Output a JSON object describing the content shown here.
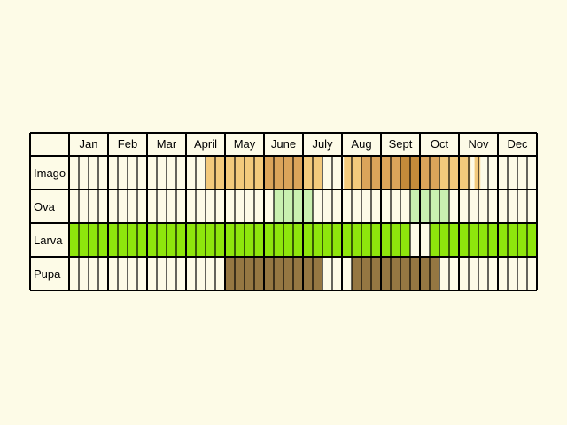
{
  "colors": {
    "background": "#fdfbe7",
    "cell_empty": "#fdfbe7",
    "grid_line": "#000000",
    "imago_light": "#f3ca7c",
    "imago_medium": "#dba45a",
    "imago_dark": "#c48b3a",
    "ova": "#c9f0b0",
    "larva": "#8ee60c",
    "pupa": "#957742"
  },
  "chart_data": {
    "type": "table",
    "months": [
      "Jan",
      "Feb",
      "Mar",
      "April",
      "May",
      "June",
      "July",
      "Aug",
      "Sept",
      "Oct",
      "Nov",
      "Dec"
    ],
    "subdivisions_per_month": 4,
    "stages": [
      "Imago",
      "Ova",
      "Larva",
      "Pupa"
    ],
    "activity": {
      "Imago": [
        {
          "start": 3.5,
          "end": 4.25,
          "level": "light"
        },
        {
          "start": 4.25,
          "end": 5.3,
          "level": "light"
        },
        {
          "start": 5.0,
          "end": 5.5,
          "level": "medium"
        },
        {
          "start": 5.5,
          "end": 6.0,
          "level": "medium"
        },
        {
          "start": 6.0,
          "end": 6.5,
          "level": "light"
        },
        {
          "start": 7.05,
          "end": 7.5,
          "level": "light"
        },
        {
          "start": 7.5,
          "end": 8.0,
          "level": "medium"
        },
        {
          "start": 8.0,
          "end": 8.5,
          "level": "medium"
        },
        {
          "start": 8.5,
          "end": 9.0,
          "level": "dark"
        },
        {
          "start": 9.0,
          "end": 9.5,
          "level": "medium"
        },
        {
          "start": 9.5,
          "end": 10.3,
          "level": "light"
        },
        {
          "start": 10.4,
          "end": 10.55,
          "level": "light"
        }
      ],
      "Ova": [
        {
          "start": 5.25,
          "end": 6.25,
          "level": "normal"
        },
        {
          "start": 8.75,
          "end": 9.75,
          "level": "normal"
        }
      ],
      "Larva": [
        {
          "start": 0,
          "end": 8.75,
          "level": "normal"
        },
        {
          "start": 9.25,
          "end": 12,
          "level": "normal"
        }
      ],
      "Pupa": [
        {
          "start": 4.0,
          "end": 6.5,
          "level": "normal"
        },
        {
          "start": 7.25,
          "end": 9.5,
          "level": "normal"
        }
      ]
    }
  }
}
